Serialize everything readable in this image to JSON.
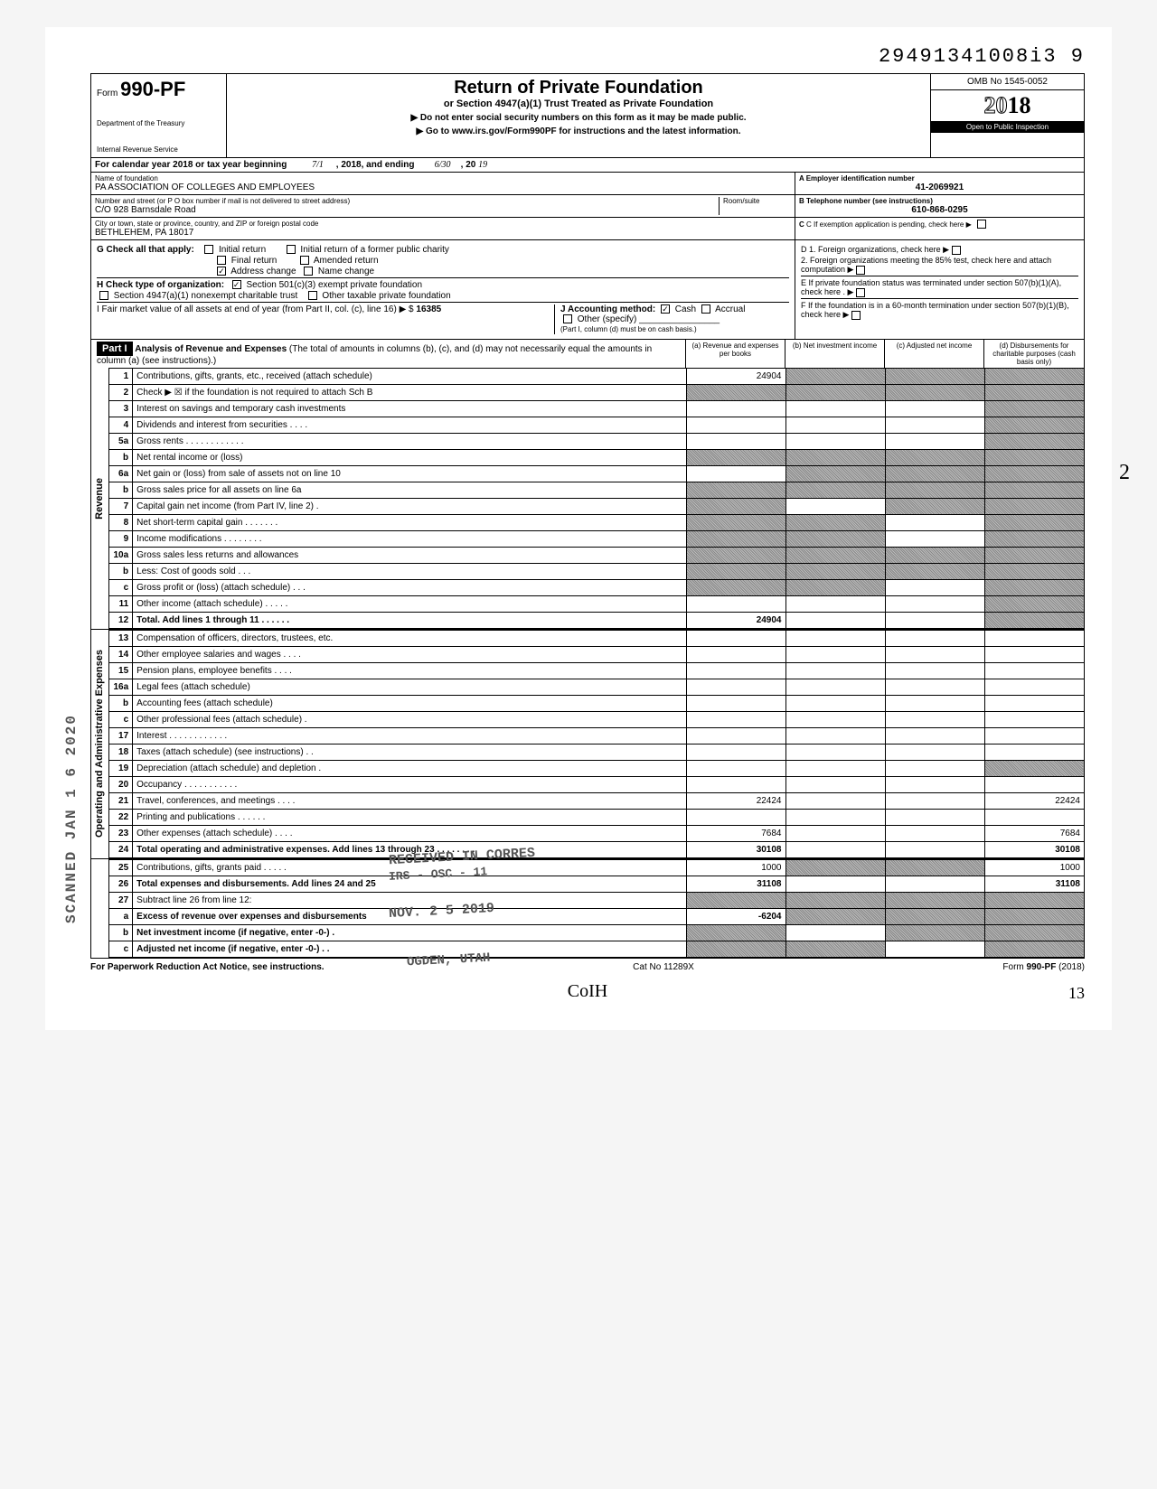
{
  "dln": "29491341008i3  9",
  "form": {
    "number": "990-PF",
    "prefix": "Form",
    "dept1": "Department of the Treasury",
    "dept2": "Internal Revenue Service",
    "title": "Return of Private Foundation",
    "subtitle": "or Section 4947(a)(1) Trust Treated as Private Foundation",
    "note1": "▶ Do not enter social security numbers on this form as it may be made public.",
    "note2": "▶ Go to www.irs.gov/Form990PF for instructions and the latest information.",
    "omb": "OMB No 1545-0052",
    "year_outline": "20",
    "year_bold": "18",
    "inspect": "Open to Public Inspection"
  },
  "cal": {
    "text": "For calendar year 2018 or tax year beginning",
    "begin": "7/1",
    "mid": ", 2018, and ending",
    "end": "6/30",
    "end2": ", 20",
    "end_yr": "19"
  },
  "id": {
    "name_lbl": "Name of foundation",
    "name": "PA ASSOCIATION OF COLLEGES AND EMPLOYEES",
    "addr_lbl": "Number and street (or P O box number if mail is not delivered to street address)",
    "addr": "C/O 928 Barnsdale Road",
    "city_lbl": "City or town, state or province, country, and ZIP or foreign postal code",
    "city": "BETHLEHEM, PA 18017",
    "room_lbl": "Room/suite",
    "a_lbl": "A  Employer identification number",
    "a_val": "41-2069921",
    "b_lbl": "B  Telephone number (see instructions)",
    "b_val": "610-868-0295",
    "c_lbl": "C  If exemption application is pending, check here ▶"
  },
  "g": {
    "lbl": "G  Check all that apply:",
    "o1": "Initial return",
    "o2": "Initial return of a former public charity",
    "o3": "Final return",
    "o4": "Amended return",
    "o5": "Address change",
    "o6": "Name change"
  },
  "h": {
    "lbl": "H  Check type of organization:",
    "o1": "Section 501(c)(3) exempt private foundation",
    "o2": "Section 4947(a)(1) nonexempt charitable trust",
    "o3": "Other taxable private foundation"
  },
  "i": {
    "lbl": "I   Fair market value of all assets at end of year  (from Part II, col. (c), line 16) ▶ $",
    "val": "16385",
    "j_lbl": "J  Accounting method:",
    "j_o1": "Cash",
    "j_o2": "Accrual",
    "j_o3": "Other (specify)",
    "j_note": "(Part I, column (d) must be on cash basis.)"
  },
  "d": {
    "d1": "D  1. Foreign organizations, check here",
    "d2": "2. Foreign organizations meeting the 85% test, check here and attach computation",
    "e": "E  If private foundation status was terminated under section 507(b)(1)(A), check here",
    "f": "F  If the foundation is in a 60-month termination under section 507(b)(1)(B), check here"
  },
  "part1": {
    "hdr": "Part I",
    "desc": "Analysis of Revenue and Expenses (The total of amounts in columns (b), (c), and (d) may not necessarily equal the amounts in column (a) (see instructions).)",
    "col_a": "(a) Revenue and expenses per books",
    "col_b": "(b) Net investment income",
    "col_c": "(c) Adjusted net income",
    "col_d": "(d) Disbursements for charitable purposes (cash basis only)"
  },
  "sections": {
    "revenue": "Revenue",
    "opex": "Operating and Administrative Expenses"
  },
  "rows": [
    {
      "n": "1",
      "t": "Contributions, gifts, grants, etc., received (attach schedule)",
      "a": "24904",
      "b": "s",
      "c": "s",
      "d": "s"
    },
    {
      "n": "2",
      "t": "Check ▶ ☒ if the foundation is not required to attach Sch B",
      "a": "s",
      "b": "s",
      "c": "s",
      "d": "s"
    },
    {
      "n": "3",
      "t": "Interest on savings and temporary cash investments",
      "a": "",
      "b": "",
      "c": "",
      "d": "s"
    },
    {
      "n": "4",
      "t": "Dividends and interest from securities  .  .  .  .",
      "a": "",
      "b": "",
      "c": "",
      "d": "s"
    },
    {
      "n": "5a",
      "t": "Gross rents .  .  .  .  .  .  .  .  .  .  .  .",
      "a": "",
      "b": "",
      "c": "",
      "d": "s"
    },
    {
      "n": "b",
      "t": "Net rental income or (loss)",
      "a": "s",
      "b": "s",
      "c": "s",
      "d": "s"
    },
    {
      "n": "6a",
      "t": "Net gain or (loss) from sale of assets not on line 10",
      "a": "",
      "b": "s",
      "c": "s",
      "d": "s"
    },
    {
      "n": "b",
      "t": "Gross sales price for all assets on line 6a",
      "a": "s",
      "b": "s",
      "c": "s",
      "d": "s"
    },
    {
      "n": "7",
      "t": "Capital gain net income (from Part IV, line 2)  .",
      "a": "s",
      "b": "",
      "c": "s",
      "d": "s"
    },
    {
      "n": "8",
      "t": "Net short-term capital gain .  .  .  .  .  .  .",
      "a": "s",
      "b": "s",
      "c": "",
      "d": "s"
    },
    {
      "n": "9",
      "t": "Income modifications   .  .  .  .  .  .  .  .",
      "a": "s",
      "b": "s",
      "c": "",
      "d": "s"
    },
    {
      "n": "10a",
      "t": "Gross sales less returns and allowances",
      "a": "s",
      "b": "s",
      "c": "s",
      "d": "s"
    },
    {
      "n": "b",
      "t": "Less: Cost of goods sold  .  .  .",
      "a": "s",
      "b": "s",
      "c": "s",
      "d": "s"
    },
    {
      "n": "c",
      "t": "Gross profit or (loss) (attach schedule)  .  .  .",
      "a": "s",
      "b": "s",
      "c": "",
      "d": "s"
    },
    {
      "n": "11",
      "t": "Other income (attach schedule)  .  .  .  .  .",
      "a": "",
      "b": "",
      "c": "",
      "d": "s"
    },
    {
      "n": "12",
      "t": "Total. Add lines 1 through 11 .  .  .  .  .  .",
      "a": "24904",
      "b": "",
      "c": "",
      "d": "s",
      "bold": true
    },
    {
      "n": "13",
      "t": "Compensation of officers, directors, trustees, etc.",
      "a": "",
      "b": "",
      "c": "",
      "d": ""
    },
    {
      "n": "14",
      "t": "Other employee salaries and wages .  .  .  .",
      "a": "",
      "b": "",
      "c": "",
      "d": ""
    },
    {
      "n": "15",
      "t": "Pension plans, employee benefits   .  .  .  .",
      "a": "",
      "b": "",
      "c": "",
      "d": ""
    },
    {
      "n": "16a",
      "t": "Legal fees (attach schedule)",
      "a": "",
      "b": "",
      "c": "",
      "d": ""
    },
    {
      "n": "b",
      "t": "Accounting fees (attach schedule)",
      "a": "",
      "b": "",
      "c": "",
      "d": ""
    },
    {
      "n": "c",
      "t": "Other professional fees (attach schedule)  .",
      "a": "",
      "b": "",
      "c": "",
      "d": ""
    },
    {
      "n": "17",
      "t": "Interest  .  .  .  .  .  .  .  .  .  .  .  .",
      "a": "",
      "b": "",
      "c": "",
      "d": ""
    },
    {
      "n": "18",
      "t": "Taxes (attach schedule) (see instructions)  .  .",
      "a": "",
      "b": "",
      "c": "",
      "d": ""
    },
    {
      "n": "19",
      "t": "Depreciation (attach schedule) and depletion  .",
      "a": "",
      "b": "",
      "c": "",
      "d": "s"
    },
    {
      "n": "20",
      "t": "Occupancy .  .  .  .  .  .  .  .  .  .  .",
      "a": "",
      "b": "",
      "c": "",
      "d": ""
    },
    {
      "n": "21",
      "t": "Travel, conferences, and meetings  .  .  .  .",
      "a": "22424",
      "b": "",
      "c": "",
      "d": "22424"
    },
    {
      "n": "22",
      "t": "Printing and publications   .  .  .  .  .  .",
      "a": "",
      "b": "",
      "c": "",
      "d": ""
    },
    {
      "n": "23",
      "t": "Other expenses (attach schedule)   .  .  .  .",
      "a": "7684",
      "b": "",
      "c": "",
      "d": "7684"
    },
    {
      "n": "24",
      "t": "Total operating and administrative expenses. Add lines 13 through 23 .  .  .  .  .  .  .  .",
      "a": "30108",
      "b": "",
      "c": "",
      "d": "30108",
      "bold": true
    },
    {
      "n": "25",
      "t": "Contributions, gifts, grants paid  .  .  .  .  .",
      "a": "1000",
      "b": "s",
      "c": "s",
      "d": "1000"
    },
    {
      "n": "26",
      "t": "Total expenses and disbursements. Add lines 24 and 25",
      "a": "31108",
      "b": "",
      "c": "",
      "d": "31108",
      "bold": true
    },
    {
      "n": "27",
      "t": "Subtract line 26 from line 12:",
      "a": "s",
      "b": "s",
      "c": "s",
      "d": "s"
    },
    {
      "n": "a",
      "t": "Excess of revenue over expenses and disbursements",
      "a": "-6204",
      "b": "s",
      "c": "s",
      "d": "s",
      "bold": true
    },
    {
      "n": "b",
      "t": "Net investment income (if negative, enter -0-)  .",
      "a": "s",
      "b": "",
      "c": "s",
      "d": "s",
      "bold": true
    },
    {
      "n": "c",
      "t": "Adjusted net income (if negative, enter -0-)  .  .",
      "a": "s",
      "b": "s",
      "c": "",
      "d": "s",
      "bold": true
    }
  ],
  "stamps": {
    "scanned": "SCANNED JAN 1 6 2020",
    "recv1": "RECEIVED IN CORRES",
    "recv2": "IRS - OSC - 11",
    "recv3": "NOV. 2 5 2019",
    "recv4": "OGDEN, UTAH"
  },
  "footer": {
    "left": "For Paperwork Reduction Act Notice, see instructions.",
    "mid": "Cat No 11289X",
    "right": "Form 990-PF (2018)"
  },
  "hand": {
    "bottom": "CoIH",
    "pgnum": "13",
    "margin": "2"
  }
}
